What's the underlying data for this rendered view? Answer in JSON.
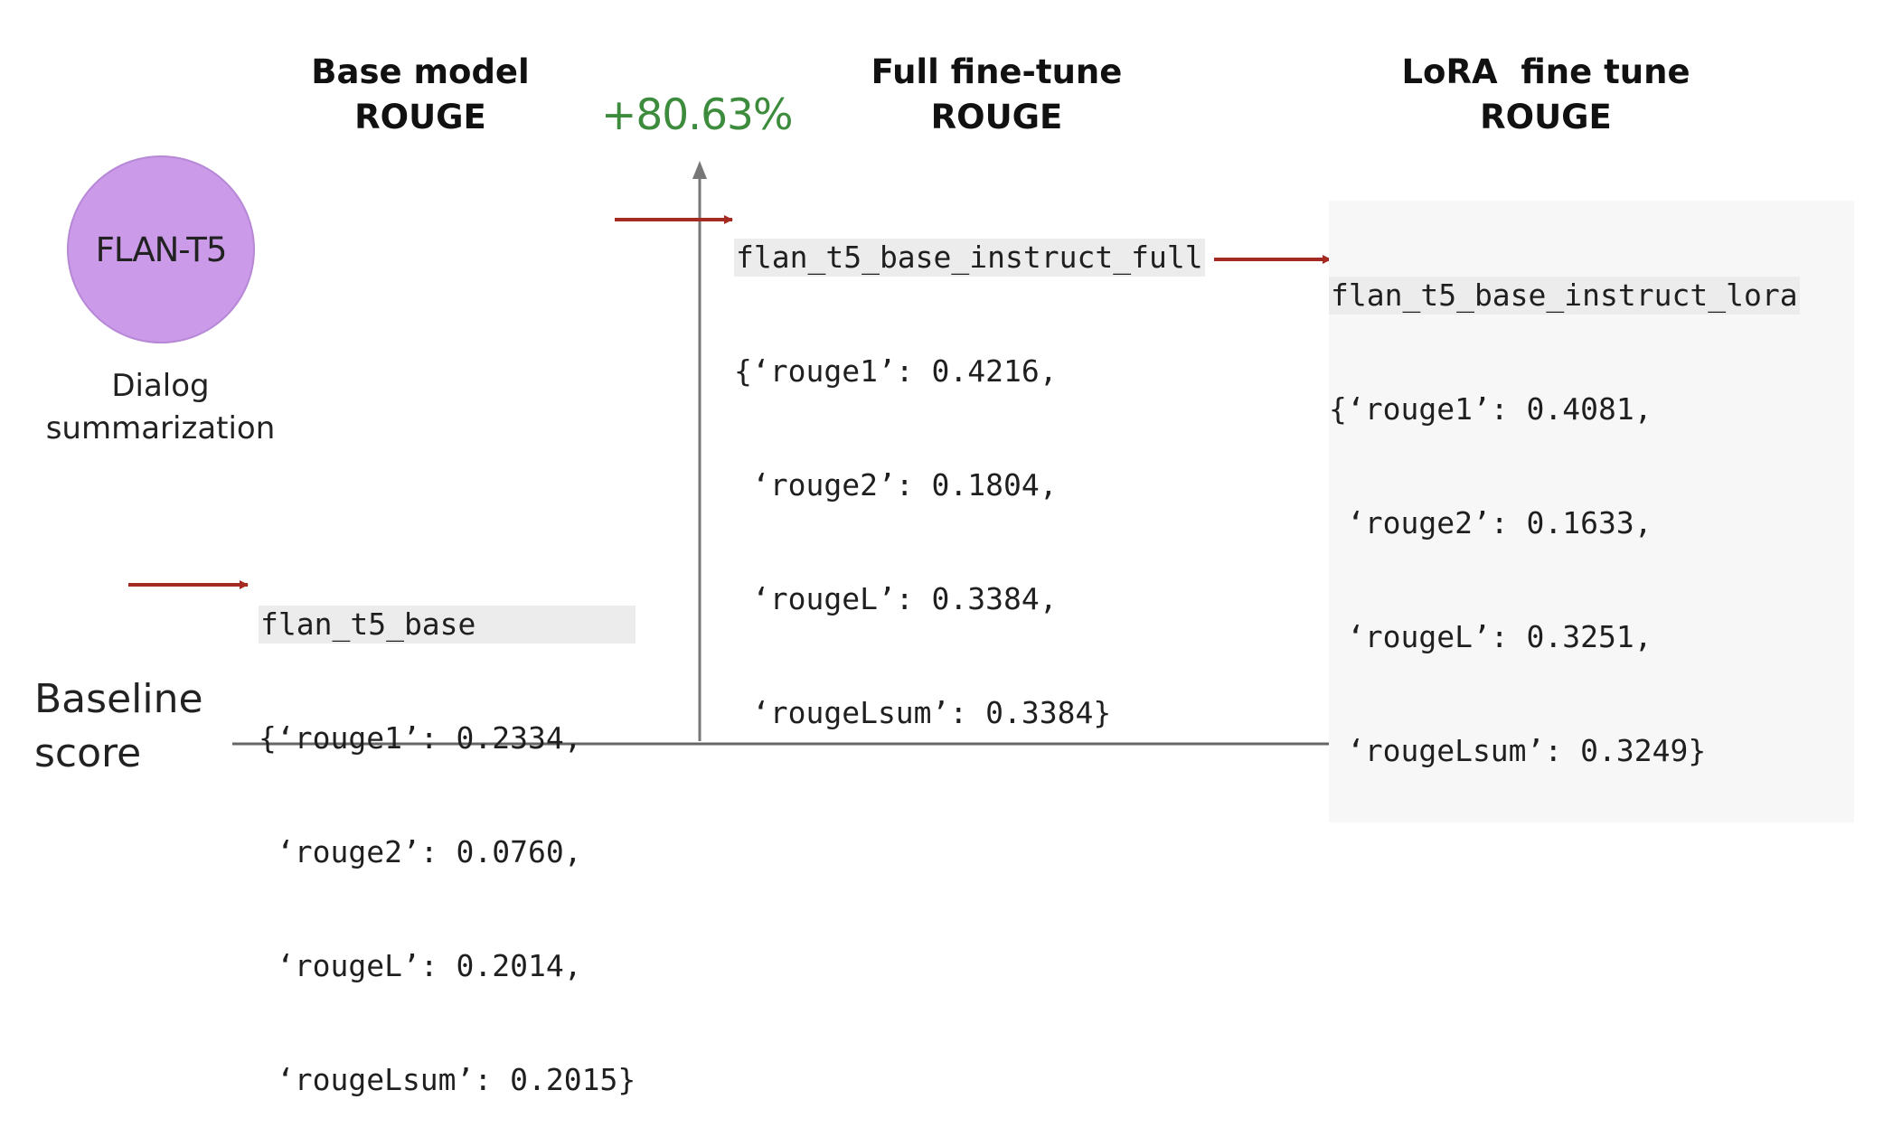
{
  "columns": {
    "base": {
      "title_line1": "Base model",
      "title_line2": "ROUGE"
    },
    "full": {
      "title_line1": "Full fine-tune",
      "title_line2": "ROUGE"
    },
    "lora": {
      "title_line1": "LoRA  fine tune",
      "title_line2": "ROUGE"
    }
  },
  "improvement": "+80.63%",
  "model_circle": {
    "label": "FLAN-T5",
    "color": "#cb9bea"
  },
  "task": {
    "line1": "Dialog",
    "line2": "summarization"
  },
  "baseline": {
    "line1": "Baseline",
    "line2": "score"
  },
  "results": {
    "base": {
      "model": "flan_t5_base",
      "lines": [
        "{‘rouge1’: 0.2334,",
        " ‘rouge2’: 0.0760,",
        " ‘rougeL’: 0.2014,",
        " ‘rougeLsum’: 0.2015}"
      ]
    },
    "full": {
      "model": "flan_t5_base_instruct_full",
      "lines": [
        "{‘rouge1’: 0.4216,",
        " ‘rouge2’: 0.1804,",
        " ‘rougeL’: 0.3384,",
        " ‘rougeLsum’: 0.3384}"
      ]
    },
    "lora": {
      "model": "flan_t5_base_instruct_lora",
      "lines": [
        "{‘rouge1’: 0.4081,",
        " ‘rouge2’: 0.1633,",
        " ‘rougeL’: 0.3251,",
        " ‘rougeLsum’: 0.3249}"
      ]
    }
  },
  "colors": {
    "arrow": "#a52a22",
    "axis": "#777777",
    "improvement": "#3d8b3d"
  }
}
